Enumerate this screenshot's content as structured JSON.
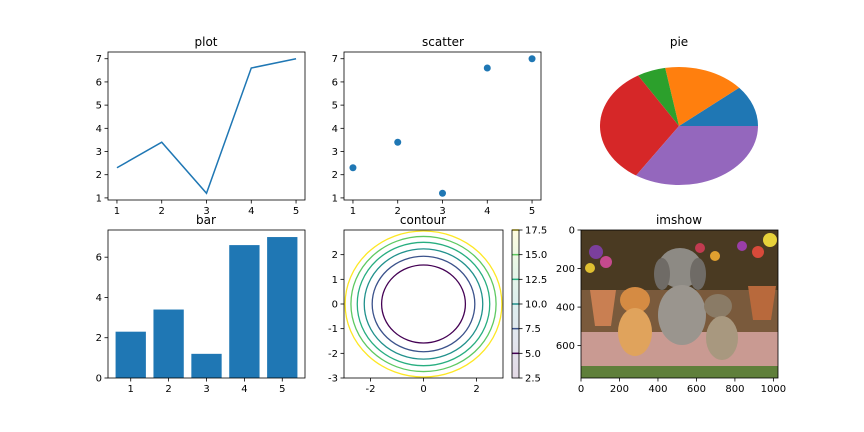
{
  "chart_data": [
    {
      "type": "line",
      "title": "plot",
      "x": [
        1,
        2,
        3,
        4,
        5
      ],
      "y": [
        2.3,
        3.4,
        1.2,
        6.6,
        7.0
      ],
      "xticks": [
        1,
        2,
        3,
        4,
        5
      ],
      "yticks": [
        1,
        2,
        3,
        4,
        5,
        6,
        7
      ],
      "xlim": [
        0.8,
        5.2
      ],
      "ylim": [
        0.91,
        7.29
      ],
      "color": "#1f77b4"
    },
    {
      "type": "scatter",
      "title": "scatter",
      "x": [
        1,
        2,
        3,
        4,
        5
      ],
      "y": [
        2.3,
        3.4,
        1.2,
        6.6,
        7.0
      ],
      "xticks": [
        1,
        2,
        3,
        4,
        5
      ],
      "yticks": [
        1,
        2,
        3,
        4,
        5,
        6,
        7
      ],
      "xlim": [
        0.8,
        5.2
      ],
      "ylim": [
        0.91,
        7.29
      ],
      "color": "#1f77b4"
    },
    {
      "type": "pie",
      "title": "pie",
      "values": [
        2.3,
        3.4,
        1.2,
        6.6,
        7.0
      ],
      "colors": [
        "#1f77b4",
        "#ff7f0e",
        "#2ca02c",
        "#d62728",
        "#9467bd"
      ]
    },
    {
      "type": "bar",
      "title": "bar",
      "categories": [
        1,
        2,
        3,
        4,
        5
      ],
      "values": [
        2.3,
        3.4,
        1.2,
        6.6,
        7.0
      ],
      "xticks": [
        1,
        2,
        3,
        4,
        5
      ],
      "yticks": [
        0,
        2,
        4,
        6
      ],
      "xlim": [
        0.4,
        5.6
      ],
      "ylim": [
        0,
        7.35
      ],
      "color": "#1f77b4"
    },
    {
      "type": "contour",
      "title": "contour",
      "levels": [
        5.0,
        7.5,
        10.0,
        12.5,
        15.0,
        17.5
      ],
      "xticks": [
        -2,
        0,
        2
      ],
      "yticks": [
        -3,
        -2,
        -1,
        0,
        1,
        2
      ],
      "xlim": [
        -3,
        3
      ],
      "ylim": [
        -3,
        3
      ],
      "colorbar": {
        "ticks": [
          "2.5",
          "5.0",
          "7.5",
          "10.0",
          "12.5",
          "15.0",
          "17.5"
        ],
        "range": [
          2.5,
          17.5
        ]
      },
      "level_colors": [
        "#440154",
        "#3b528b",
        "#21918c",
        "#28ae80",
        "#5ec962",
        "#fde725"
      ]
    },
    {
      "type": "image",
      "title": "imshow",
      "xticks": [
        0,
        200,
        400,
        600,
        800,
        1000
      ],
      "yticks": [
        0,
        200,
        400,
        600
      ],
      "xlim": [
        0,
        1024
      ],
      "ylim": [
        0,
        768
      ]
    }
  ]
}
